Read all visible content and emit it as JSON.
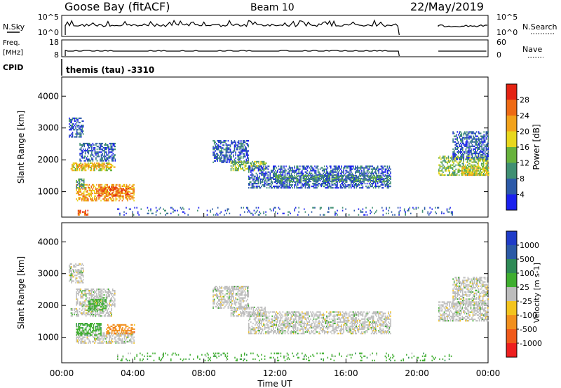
{
  "header": {
    "station": "Goose Bay (fitACF)",
    "beam": "Beam 10",
    "date": "22/May/2019"
  },
  "panels": {
    "nsky": {
      "left_label": "N.Sky",
      "left_ticks": [
        "10^5",
        "10^0"
      ],
      "right_ticks": [
        "10^5",
        "10^0"
      ],
      "right_label": "N.Search"
    },
    "freq": {
      "left_label_1": "Freq.",
      "left_label_2": "[MHz]",
      "left_ticks": [
        "18",
        "8"
      ],
      "right_ticks": [
        "60",
        "0"
      ],
      "right_label": "Nave"
    },
    "cpid": {
      "left_label": "CPID",
      "program": "themis (tau) -3310"
    }
  },
  "power_colorbar": {
    "label": "Power [dB]",
    "ticks": [
      "4",
      "8",
      "12",
      "16",
      "20",
      "24",
      "28"
    ],
    "colors": [
      "#1a20ee",
      "#2c5aa8",
      "#3f8f72",
      "#67b23c",
      "#e8d71c",
      "#f2a21a",
      "#ee6a14",
      "#e42312"
    ]
  },
  "velocity_colorbar": {
    "label": "Velocity [m s-1]",
    "ticks": [
      "-1000",
      "-500",
      "-100",
      "-25",
      "25",
      "100",
      "500",
      "1000"
    ],
    "colors": [
      "#ee1f1f",
      "#f05a1a",
      "#f2901e",
      "#f3c41e",
      "#bdbdbd",
      "#3fae2f",
      "#2e8a56",
      "#2b5aa6",
      "#1f3cc8"
    ]
  },
  "x_axis": {
    "label": "Time UT",
    "ticks": [
      "00:00",
      "04:00",
      "08:00",
      "12:00",
      "16:00",
      "20:00",
      "00:00"
    ]
  },
  "chart_data": [
    {
      "type": "heatmap",
      "name": "power",
      "xlabel": "Time UT",
      "ylabel": "Slant Range [km]",
      "xlim": [
        0,
        24
      ],
      "ylim": [
        200,
        4600
      ],
      "yticks": [
        "1000",
        "2000",
        "3000",
        "4000"
      ],
      "colorbar": "Power [dB]",
      "regions": [
        {
          "t": [
            0.5,
            2.8
          ],
          "r": [
            1650,
            1900
          ],
          "level": 20
        },
        {
          "t": [
            0.8,
            3.0
          ],
          "r": [
            1750,
            1850
          ],
          "level": 24
        },
        {
          "t": [
            0.8,
            4.1
          ],
          "r": [
            700,
            1200
          ],
          "level": 24
        },
        {
          "t": [
            2.0,
            3.8
          ],
          "r": [
            850,
            1150
          ],
          "level": 28
        },
        {
          "t": [
            0.8,
            1.3
          ],
          "r": [
            1100,
            1400
          ],
          "level": 12
        },
        {
          "t": [
            1.0,
            3.0
          ],
          "r": [
            1950,
            2500
          ],
          "level": 8
        },
        {
          "t": [
            0.4,
            1.2
          ],
          "r": [
            2700,
            3300
          ],
          "level": 8
        },
        {
          "t": [
            0.9,
            1.5
          ],
          "r": [
            250,
            400
          ],
          "level": 28
        },
        {
          "t": [
            8.5,
            10.5
          ],
          "r": [
            1900,
            2600
          ],
          "level": 8
        },
        {
          "t": [
            9.5,
            11.5
          ],
          "r": [
            1650,
            1950
          ],
          "level": 16
        },
        {
          "t": [
            10.5,
            18.5
          ],
          "r": [
            1100,
            1800
          ],
          "level": 8
        },
        {
          "t": [
            12.0,
            18.5
          ],
          "r": [
            1300,
            1500
          ],
          "level": 12
        },
        {
          "t": [
            21.2,
            24.0
          ],
          "r": [
            1500,
            2100
          ],
          "level": 16
        },
        {
          "t": [
            22.5,
            24.0
          ],
          "r": [
            1500,
            1800
          ],
          "level": 20
        },
        {
          "t": [
            22.0,
            24.0
          ],
          "r": [
            2000,
            2900
          ],
          "level": 8
        },
        {
          "t": [
            3.0,
            22.0
          ],
          "r": [
            250,
            500
          ],
          "level": 8
        }
      ]
    },
    {
      "type": "heatmap",
      "name": "velocity",
      "xlabel": "Time UT",
      "ylabel": "Slant Range [km]",
      "xlim": [
        0,
        24
      ],
      "ylim": [
        200,
        4600
      ],
      "yticks": [
        "1000",
        "2000",
        "3000",
        "4000"
      ],
      "colorbar": "Velocity [m s-1]",
      "regions": [
        {
          "t": [
            0.5,
            2.8
          ],
          "r": [
            1650,
            1900
          ],
          "level": 0
        },
        {
          "t": [
            0.8,
            3.0
          ],
          "r": [
            1950,
            2500
          ],
          "level": 0
        },
        {
          "t": [
            0.8,
            4.1
          ],
          "r": [
            800,
            1150
          ],
          "level": 0
        },
        {
          "t": [
            0.8,
            2.2
          ],
          "r": [
            1050,
            1450
          ],
          "level": 100
        },
        {
          "t": [
            2.5,
            4.1
          ],
          "r": [
            1100,
            1400
          ],
          "level": -100
        },
        {
          "t": [
            1.5,
            2.5
          ],
          "r": [
            1800,
            2200
          ],
          "level": 100
        },
        {
          "t": [
            0.4,
            1.2
          ],
          "r": [
            2700,
            3300
          ],
          "level": 0
        },
        {
          "t": [
            8.5,
            10.5
          ],
          "r": [
            1900,
            2600
          ],
          "level": 0
        },
        {
          "t": [
            9.5,
            11.5
          ],
          "r": [
            1650,
            1950
          ],
          "level": 0
        },
        {
          "t": [
            10.5,
            18.5
          ],
          "r": [
            1100,
            1800
          ],
          "level": 0
        },
        {
          "t": [
            21.2,
            24.0
          ],
          "r": [
            1500,
            2100
          ],
          "level": 0
        },
        {
          "t": [
            22.0,
            24.0
          ],
          "r": [
            2000,
            2900
          ],
          "level": 0
        },
        {
          "t": [
            3.0,
            22.0
          ],
          "r": [
            250,
            500
          ],
          "level": 100
        }
      ]
    }
  ]
}
